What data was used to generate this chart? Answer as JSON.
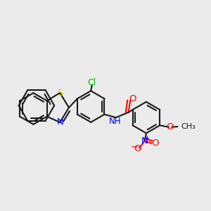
{
  "background_color": "#EBEBEB",
  "bond_color": "#1a1a1a",
  "bond_lw": 1.5,
  "atom_colors": {
    "N": "#0000FF",
    "O": "#FF0000",
    "S": "#CCCC00",
    "Cl": "#00BB00",
    "H": "#008888",
    "C": "#1a1a1a"
  },
  "font_size": 8.5
}
